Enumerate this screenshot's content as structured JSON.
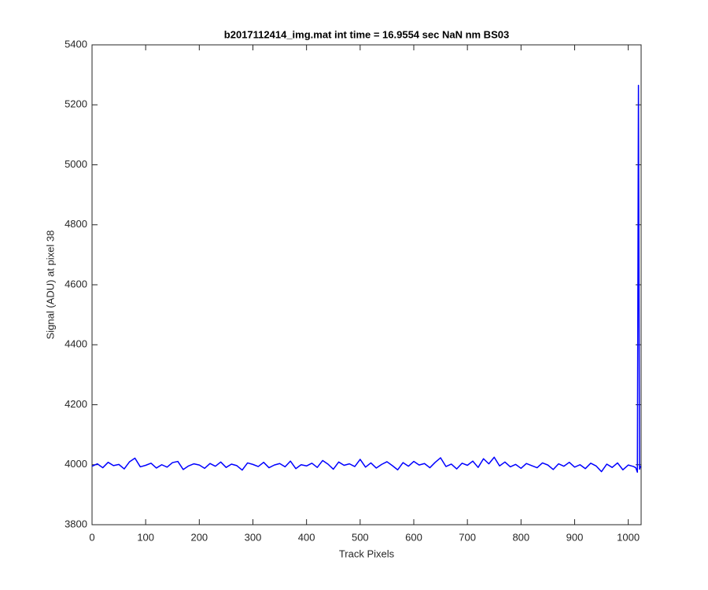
{
  "chart_data": {
    "type": "line",
    "title": "b2017112414_img.mat int time = 16.9554 sec  NaN nm BS03",
    "x_label": "Track Pixels",
    "y_label": "Signal (ADU) at pixel 38",
    "x": [
      0,
      10,
      20,
      30,
      40,
      50,
      60,
      70,
      80,
      90,
      100,
      110,
      120,
      130,
      140,
      150,
      160,
      170,
      180,
      190,
      200,
      210,
      220,
      230,
      240,
      250,
      260,
      270,
      280,
      290,
      300,
      310,
      320,
      330,
      340,
      350,
      360,
      370,
      380,
      390,
      400,
      410,
      420,
      430,
      440,
      450,
      460,
      470,
      480,
      490,
      500,
      510,
      520,
      530,
      540,
      550,
      560,
      570,
      580,
      590,
      600,
      610,
      620,
      630,
      640,
      650,
      660,
      670,
      680,
      690,
      700,
      710,
      720,
      730,
      740,
      750,
      760,
      770,
      780,
      790,
      800,
      810,
      820,
      830,
      840,
      850,
      860,
      870,
      880,
      890,
      900,
      910,
      920,
      930,
      940,
      950,
      960,
      970,
      980,
      990,
      1000,
      1010,
      1014,
      1017,
      1019,
      1021,
      1023
    ],
    "series": [
      {
        "color": "#0000ff",
        "values": [
          3995,
          4003,
          3990,
          4008,
          3997,
          4001,
          3986,
          4010,
          4022,
          3993,
          3998,
          4005,
          3989,
          4000,
          3992,
          4007,
          4011,
          3984,
          3996,
          4003,
          3999,
          3988,
          4004,
          3995,
          4009,
          3991,
          4002,
          3997,
          3982,
          4006,
          4001,
          3994,
          4008,
          3990,
          3999,
          4004,
          3993,
          4012,
          3987,
          4000,
          3996,
          4005,
          3991,
          4014,
          4002,
          3985,
          4009,
          3998,
          4003,
          3994,
          4018,
          3992,
          4006,
          3989,
          4001,
          4010,
          3997,
          3983,
          4007,
          3995,
          4011,
          3999,
          4004,
          3990,
          4008,
          4023,
          3994,
          4002,
          3986,
          4005,
          3998,
          4012,
          3991,
          4020,
          4003,
          4025,
          3996,
          4009,
          3993,
          4001,
          3988,
          4004,
          3997,
          3990,
          4006,
          3999,
          3984,
          4003,
          3995,
          4008,
          3992,
          4000,
          3987,
          4005,
          3996,
          3977,
          4002,
          3991,
          4006,
          3983,
          3999,
          3994,
          3990,
          3975,
          5265,
          3985,
          3996
        ]
      }
    ],
    "xlim": [
      0,
      1024
    ],
    "ylim": [
      3800,
      5400
    ],
    "xticks": [
      0,
      100,
      200,
      300,
      400,
      500,
      600,
      700,
      800,
      900,
      1000
    ],
    "yticks": [
      3800,
      4000,
      4200,
      4400,
      4600,
      4800,
      5000,
      5200,
      5400
    ],
    "grid": false
  }
}
